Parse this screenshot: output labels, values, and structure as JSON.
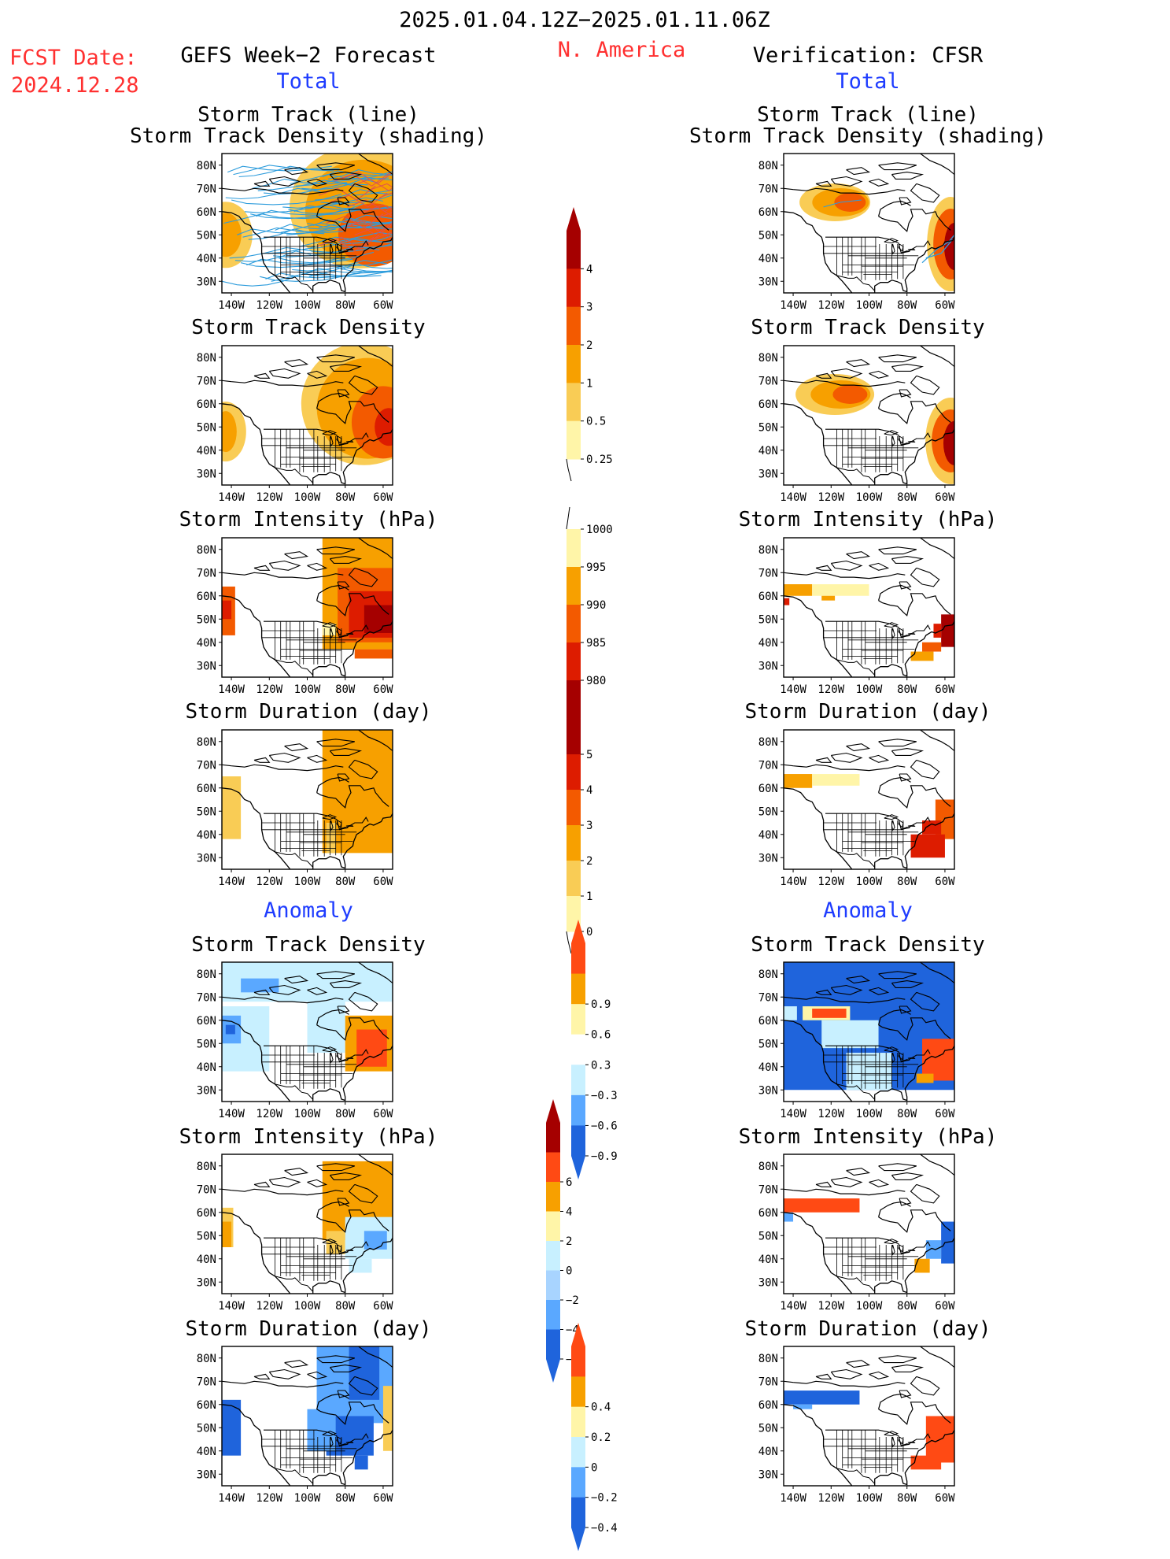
{
  "header": {
    "time_range": "2025.01.04.12Z−2025.01.11.06Z",
    "region": "N. America",
    "fcst_label": "FCST Date:",
    "fcst_date": "2024.12.28",
    "left_title": "GEFS Week−2 Forecast",
    "right_title": "Verification: CFSR",
    "total_label": "Total",
    "anomaly_label": "Anomaly"
  },
  "axes": {
    "lat_ticks": [
      "80N",
      "70N",
      "60N",
      "50N",
      "40N",
      "30N"
    ],
    "lon_ticks": [
      "140W",
      "120W",
      "100W",
      "80W",
      "60W"
    ]
  },
  "panel_titles": {
    "track": [
      "Storm Track (line)",
      "Storm Track Density (shading)"
    ],
    "density": "Storm Track Density",
    "intensity": "Storm Intensity (hPa)",
    "duration": "Storm Duration (day)"
  },
  "colorbars": {
    "density_total": [
      "4",
      "3",
      "2",
      "1",
      "0.5",
      "0.25"
    ],
    "intensity_total": [
      "1000",
      "995",
      "990",
      "985",
      "980"
    ],
    "duration_total": [
      "5",
      "4",
      "3",
      "2",
      "1",
      "0"
    ],
    "density_anom": [
      "0.9",
      "0.6",
      "0.3",
      "−0.3",
      "−0.6",
      "−0.9"
    ],
    "intensity_anom": [
      "6",
      "4",
      "2",
      "0",
      "−2",
      "−4",
      "−6"
    ],
    "duration_anom": [
      "0.4",
      "0.2",
      "0",
      "−0.2",
      "−0.4"
    ]
  },
  "colors": {
    "dark_red": "#a50000",
    "red": "#dd1c00",
    "orange_red": "#f35a00",
    "orange": "#f7a000",
    "light_orange": "#f9cc55",
    "pale_yellow": "#fff5a8",
    "red_anom": "#ff4a14",
    "light_blue": "#c8f0ff",
    "mid_blue": "#5aa8ff",
    "blue": "#1f64dc",
    "track_blue": "#2d9cdc"
  }
}
